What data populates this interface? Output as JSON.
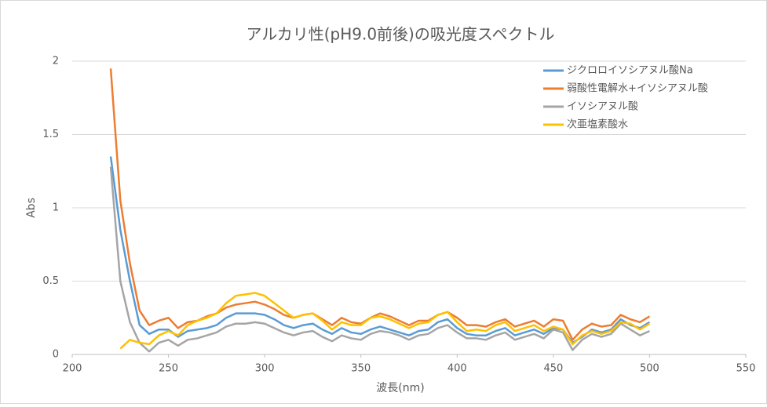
{
  "chart_data": {
    "type": "line",
    "title": "アルカリ性(pH9.0前後)の吸光度スペクトル",
    "xlabel": "波長(nm)",
    "ylabel": "Abs",
    "x": [
      220,
      225,
      230,
      235,
      240,
      245,
      250,
      255,
      260,
      265,
      270,
      275,
      280,
      285,
      290,
      295,
      300,
      305,
      310,
      315,
      320,
      325,
      330,
      335,
      340,
      345,
      350,
      355,
      360,
      365,
      370,
      375,
      380,
      385,
      390,
      395,
      400,
      405,
      410,
      415,
      420,
      425,
      430,
      435,
      440,
      445,
      450,
      455,
      460,
      465,
      470,
      475,
      480,
      485,
      490,
      495,
      500
    ],
    "series": [
      {
        "name": "ジクロロイソシアヌル酸Na",
        "color": "#5b9bd5",
        "values": [
          1.35,
          0.85,
          0.5,
          0.2,
          0.14,
          0.17,
          0.17,
          0.12,
          0.16,
          0.17,
          0.18,
          0.2,
          0.25,
          0.28,
          0.28,
          0.28,
          0.27,
          0.24,
          0.2,
          0.18,
          0.2,
          0.21,
          0.17,
          0.14,
          0.18,
          0.15,
          0.14,
          0.17,
          0.19,
          0.17,
          0.15,
          0.13,
          0.16,
          0.17,
          0.22,
          0.24,
          0.18,
          0.14,
          0.13,
          0.13,
          0.16,
          0.18,
          0.13,
          0.15,
          0.17,
          0.14,
          0.18,
          0.17,
          0.08,
          0.12,
          0.17,
          0.15,
          0.17,
          0.24,
          0.2,
          0.18,
          0.22
        ]
      },
      {
        "name": "弱酸性電解水+イソシアヌル酸",
        "color": "#ed7d31",
        "values": [
          1.95,
          1.05,
          0.62,
          0.3,
          0.2,
          0.23,
          0.25,
          0.18,
          0.22,
          0.23,
          0.26,
          0.28,
          0.32,
          0.34,
          0.35,
          0.36,
          0.34,
          0.31,
          0.27,
          0.25,
          0.27,
          0.28,
          0.24,
          0.2,
          0.25,
          0.22,
          0.21,
          0.25,
          0.28,
          0.26,
          0.23,
          0.2,
          0.23,
          0.23,
          0.27,
          0.29,
          0.25,
          0.2,
          0.2,
          0.19,
          0.22,
          0.24,
          0.19,
          0.21,
          0.23,
          0.19,
          0.24,
          0.23,
          0.1,
          0.17,
          0.21,
          0.19,
          0.2,
          0.27,
          0.24,
          0.22,
          0.26
        ]
      },
      {
        "name": "イソシアヌル酸",
        "color": "#a5a5a5",
        "values": [
          1.28,
          0.5,
          0.22,
          0.08,
          0.02,
          0.08,
          0.1,
          0.06,
          0.1,
          0.11,
          0.13,
          0.15,
          0.19,
          0.21,
          0.21,
          0.22,
          0.21,
          0.18,
          0.15,
          0.13,
          0.15,
          0.16,
          0.12,
          0.09,
          0.13,
          0.11,
          0.1,
          0.14,
          0.16,
          0.15,
          0.13,
          0.1,
          0.13,
          0.14,
          0.18,
          0.2,
          0.15,
          0.11,
          0.11,
          0.1,
          0.13,
          0.15,
          0.1,
          0.12,
          0.14,
          0.11,
          0.17,
          0.15,
          0.03,
          0.1,
          0.14,
          0.12,
          0.14,
          0.21,
          0.17,
          0.13,
          0.16
        ]
      },
      {
        "name": "次亜塩素酸水",
        "color": "#ffc000",
        "values": [
          null,
          0.04,
          0.1,
          0.08,
          0.07,
          0.13,
          0.16,
          0.13,
          0.2,
          0.23,
          0.25,
          0.28,
          0.35,
          0.4,
          0.41,
          0.42,
          0.4,
          0.35,
          0.3,
          0.25,
          0.27,
          0.28,
          0.23,
          0.17,
          0.22,
          0.2,
          0.2,
          0.25,
          0.26,
          0.24,
          0.21,
          0.18,
          0.21,
          0.22,
          0.27,
          0.29,
          0.22,
          0.16,
          0.17,
          0.16,
          0.2,
          0.22,
          0.16,
          0.18,
          0.2,
          0.16,
          0.19,
          0.17,
          0.07,
          0.13,
          0.16,
          0.14,
          0.16,
          0.22,
          0.21,
          0.17,
          0.21
        ]
      }
    ],
    "xlim": [
      200,
      550
    ],
    "xticks": [
      200,
      250,
      300,
      350,
      400,
      450,
      500,
      550
    ],
    "ylim": [
      0,
      2
    ],
    "yticks": [
      0,
      0.5,
      1,
      1.5,
      2
    ],
    "grid": true,
    "legend": "top-right"
  }
}
